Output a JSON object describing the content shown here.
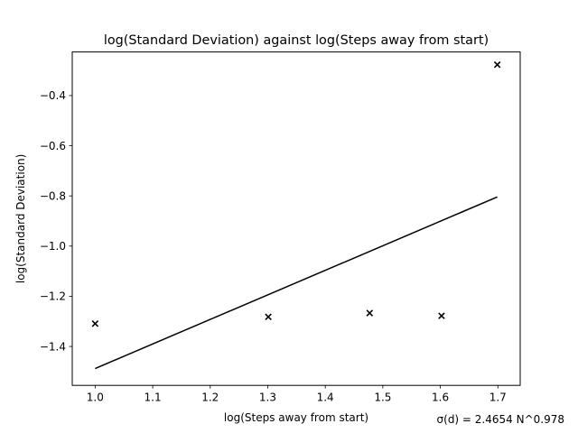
{
  "chart_data": {
    "type": "scatter",
    "title": "log(Standard Deviation) against log(Steps away from start)",
    "xlabel": "log(Steps away from start)",
    "ylabel": "log(Standard Deviation)",
    "xlim": [
      0.9602,
      1.7388
    ],
    "ylim": [
      -1.5551,
      -0.2263
    ],
    "xticks": [
      1.0,
      1.1,
      1.2,
      1.3,
      1.4,
      1.5,
      1.6,
      1.7
    ],
    "xtick_labels": [
      "1.0",
      "1.1",
      "1.2",
      "1.3",
      "1.4",
      "1.5",
      "1.6",
      "1.7"
    ],
    "yticks": [
      -1.4,
      -1.2,
      -1.0,
      -0.8,
      -0.6,
      -0.4
    ],
    "ytick_labels": [
      "−1.4",
      "−1.2",
      "−1.0",
      "−0.8",
      "−0.6",
      "−0.4"
    ],
    "grid": false,
    "series": [
      {
        "kind": "scatter",
        "marker": "x",
        "color": "#000000",
        "points": [
          {
            "x": 1.0,
            "y": -1.309
          },
          {
            "x": 1.301,
            "y": -1.282
          },
          {
            "x": 1.4771,
            "y": -1.267
          },
          {
            "x": 1.6021,
            "y": -1.278
          },
          {
            "x": 1.699,
            "y": -0.277
          }
        ]
      },
      {
        "kind": "line",
        "color": "#000000",
        "points": [
          {
            "x": 1.0,
            "y": -1.488
          },
          {
            "x": 1.699,
            "y": -0.804
          }
        ]
      }
    ],
    "annotation": "σ(d) = 2.4654 N^0.978"
  }
}
